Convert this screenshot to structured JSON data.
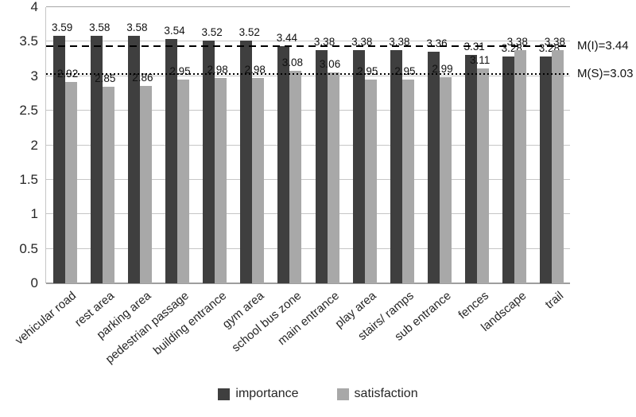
{
  "chart_data": {
    "type": "bar",
    "categories": [
      "vehicular road",
      "rest area",
      "parking area",
      "pedestrian passage",
      "building entrance",
      "gym area",
      "school bus zone",
      "main entrance",
      "play area",
      "stairs/ ramps",
      "sub entrance",
      "fences",
      "landscape",
      "trail"
    ],
    "series": [
      {
        "name": "importance",
        "color": "#3f3f3f",
        "values": [
          3.59,
          3.58,
          3.58,
          3.54,
          3.52,
          3.52,
          3.44,
          3.38,
          3.38,
          3.38,
          3.36,
          3.31,
          3.28,
          3.28
        ]
      },
      {
        "name": "satisfaction",
        "color": "#a8a8a8",
        "values": [
          2.92,
          2.85,
          2.86,
          2.95,
          2.98,
          2.98,
          3.08,
          3.06,
          2.95,
          2.95,
          2.99,
          3.11,
          3.38,
          3.38
        ]
      }
    ],
    "title": "",
    "xlabel": "",
    "ylabel": "",
    "ylim": [
      0,
      4
    ],
    "ytick_labels": [
      "0",
      "0.5",
      "1",
      "1.5",
      "2",
      "2.5",
      "3",
      "3.5",
      "4"
    ],
    "grid": true,
    "legend_position": "bottom",
    "reference_lines": [
      {
        "label": "M(I)=3.44",
        "value": 3.44,
        "style": "dashed"
      },
      {
        "label": "M(S)=3.03",
        "value": 3.03,
        "style": "dotted"
      }
    ]
  },
  "legend": {
    "items": [
      {
        "label": "importance"
      },
      {
        "label": "satisfaction"
      }
    ]
  }
}
